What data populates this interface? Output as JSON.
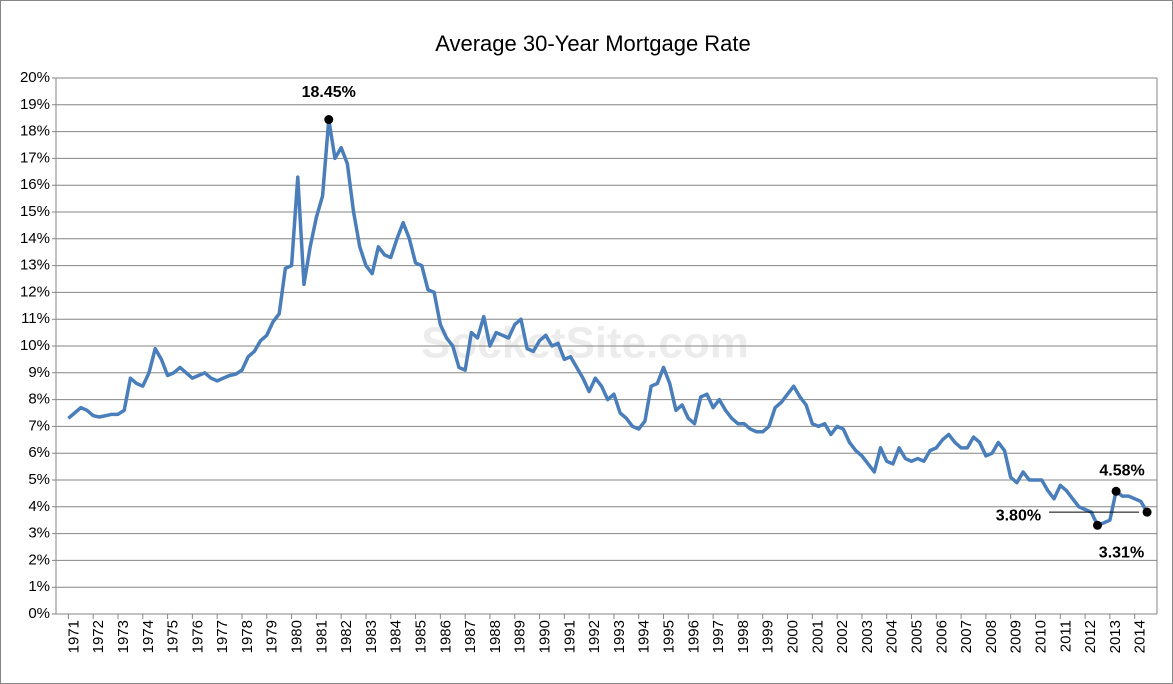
{
  "chart_data": {
    "type": "line",
    "title": "Average 30-Year Mortgage Rate",
    "watermark": "SocketSite.com",
    "x": [
      1971,
      1971.25,
      1971.5,
      1971.75,
      1972,
      1972.25,
      1972.5,
      1972.75,
      1973,
      1973.25,
      1973.5,
      1973.75,
      1974,
      1974.25,
      1974.5,
      1974.75,
      1975,
      1975.25,
      1975.5,
      1975.75,
      1976,
      1976.25,
      1976.5,
      1976.75,
      1977,
      1977.25,
      1977.5,
      1977.75,
      1978,
      1978.25,
      1978.5,
      1978.75,
      1979,
      1979.25,
      1979.5,
      1979.75,
      1980,
      1980.25,
      1980.5,
      1980.75,
      1981,
      1981.25,
      1981.5,
      1981.75,
      1982,
      1982.25,
      1982.5,
      1982.75,
      1983,
      1983.25,
      1983.5,
      1983.75,
      1984,
      1984.25,
      1984.5,
      1984.75,
      1985,
      1985.25,
      1985.5,
      1985.75,
      1986,
      1986.25,
      1986.5,
      1986.75,
      1987,
      1987.25,
      1987.5,
      1987.75,
      1988,
      1988.25,
      1988.5,
      1988.75,
      1989,
      1989.25,
      1989.5,
      1989.75,
      1990,
      1990.25,
      1990.5,
      1990.75,
      1991,
      1991.25,
      1991.5,
      1991.75,
      1992,
      1992.25,
      1992.5,
      1992.75,
      1993,
      1993.25,
      1993.5,
      1993.75,
      1994,
      1994.25,
      1994.5,
      1994.75,
      1995,
      1995.25,
      1995.5,
      1995.75,
      1996,
      1996.25,
      1996.5,
      1996.75,
      1997,
      1997.25,
      1997.5,
      1997.75,
      1998,
      1998.25,
      1998.5,
      1998.75,
      1999,
      1999.25,
      1999.5,
      1999.75,
      2000,
      2000.25,
      2000.5,
      2000.75,
      2001,
      2001.25,
      2001.5,
      2001.75,
      2002,
      2002.25,
      2002.5,
      2002.75,
      2003,
      2003.25,
      2003.5,
      2003.75,
      2004,
      2004.25,
      2004.5,
      2004.75,
      2005,
      2005.25,
      2005.5,
      2005.75,
      2006,
      2006.25,
      2006.5,
      2006.75,
      2007,
      2007.25,
      2007.5,
      2007.75,
      2008,
      2008.25,
      2008.5,
      2008.75,
      2009,
      2009.25,
      2009.5,
      2009.75,
      2010,
      2010.25,
      2010.5,
      2010.75,
      2011,
      2011.25,
      2011.5,
      2011.75,
      2012,
      2012.25,
      2012.5,
      2012.75,
      2013,
      2013.25,
      2013.5,
      2013.75,
      2014,
      2014.25,
      2014.5
    ],
    "series": [
      {
        "name": "30-Year Mortgage Rate",
        "color": "#4a7ebb",
        "values": [
          7.3,
          7.5,
          7.7,
          7.6,
          7.4,
          7.35,
          7.4,
          7.45,
          7.45,
          7.6,
          8.8,
          8.6,
          8.5,
          9.0,
          9.9,
          9.5,
          8.9,
          9.0,
          9.2,
          9.0,
          8.8,
          8.9,
          9.0,
          8.8,
          8.7,
          8.8,
          8.9,
          8.95,
          9.1,
          9.6,
          9.8,
          10.2,
          10.4,
          10.9,
          11.2,
          12.9,
          13.0,
          16.3,
          12.3,
          13.7,
          14.8,
          15.6,
          18.45,
          17.0,
          17.4,
          16.8,
          15.0,
          13.7,
          13.0,
          12.7,
          13.7,
          13.4,
          13.3,
          14.0,
          14.6,
          14.0,
          13.1,
          13.0,
          12.1,
          12.0,
          10.8,
          10.3,
          10.0,
          9.2,
          9.1,
          10.5,
          10.3,
          11.1,
          10.0,
          10.5,
          10.4,
          10.3,
          10.8,
          11.0,
          9.9,
          9.8,
          10.2,
          10.4,
          10.0,
          10.1,
          9.5,
          9.6,
          9.2,
          8.8,
          8.3,
          8.8,
          8.5,
          8.0,
          8.2,
          7.5,
          7.3,
          7.0,
          6.9,
          7.2,
          8.5,
          8.6,
          9.2,
          8.6,
          7.6,
          7.8,
          7.3,
          7.1,
          8.1,
          8.2,
          7.7,
          8.0,
          7.6,
          7.3,
          7.1,
          7.1,
          6.9,
          6.8,
          6.8,
          7.0,
          7.7,
          7.9,
          8.2,
          8.5,
          8.1,
          7.8,
          7.1,
          7.0,
          7.1,
          6.7,
          7.0,
          6.9,
          6.4,
          6.1,
          5.9,
          5.6,
          5.3,
          6.2,
          5.7,
          5.6,
          6.2,
          5.8,
          5.7,
          5.8,
          5.7,
          6.1,
          6.2,
          6.5,
          6.7,
          6.4,
          6.2,
          6.2,
          6.6,
          6.4,
          5.9,
          6.0,
          6.4,
          6.1,
          5.1,
          4.9,
          5.3,
          5.0,
          5.0,
          5.0,
          4.6,
          4.3,
          4.8,
          4.6,
          4.3,
          4.0,
          3.9,
          3.8,
          3.31,
          3.4,
          3.5,
          4.58,
          4.4,
          4.4,
          4.3,
          4.2,
          3.8
        ]
      }
    ],
    "annotations": [
      {
        "x": 1981.5,
        "value": 18.45,
        "label": "18.45%"
      },
      {
        "x": 2013.25,
        "value": 4.58,
        "label": "4.58%"
      },
      {
        "x": 2014.5,
        "value": 3.8,
        "label": "3.80%"
      },
      {
        "x": 2012.5,
        "value": 3.31,
        "label": "3.31%"
      }
    ],
    "xlim": [
      1970.5,
      2014.9
    ],
    "xticks": [
      1971,
      1972,
      1973,
      1974,
      1975,
      1976,
      1977,
      1978,
      1979,
      1980,
      1981,
      1982,
      1983,
      1984,
      1985,
      1986,
      1987,
      1988,
      1989,
      1990,
      1991,
      1992,
      1993,
      1994,
      1995,
      1996,
      1997,
      1998,
      1999,
      2000,
      2001,
      2002,
      2003,
      2004,
      2005,
      2006,
      2007,
      2008,
      2009,
      2010,
      2011,
      2012,
      2013,
      2014
    ],
    "ylim": [
      0,
      20
    ],
    "yticks": [
      {
        "value": 0,
        "label": "0%"
      },
      {
        "value": 1,
        "label": "1%"
      },
      {
        "value": 2,
        "label": "2%"
      },
      {
        "value": 3,
        "label": "3%"
      },
      {
        "value": 4,
        "label": "4%"
      },
      {
        "value": 5,
        "label": "5%"
      },
      {
        "value": 6,
        "label": "6%"
      },
      {
        "value": 7,
        "label": "7%"
      },
      {
        "value": 8,
        "label": "8%"
      },
      {
        "value": 9,
        "label": "9%"
      },
      {
        "value": 10,
        "label": "10%"
      },
      {
        "value": 11,
        "label": "11%"
      },
      {
        "value": 12,
        "label": "12%"
      },
      {
        "value": 13,
        "label": "13%"
      },
      {
        "value": 14,
        "label": "14%"
      },
      {
        "value": 15,
        "label": "15%"
      },
      {
        "value": 16,
        "label": "16%"
      },
      {
        "value": 17,
        "label": "17%"
      },
      {
        "value": 18,
        "label": "18%"
      },
      {
        "value": 19,
        "label": "19%"
      },
      {
        "value": 20,
        "label": "20%"
      }
    ],
    "grid": true
  }
}
